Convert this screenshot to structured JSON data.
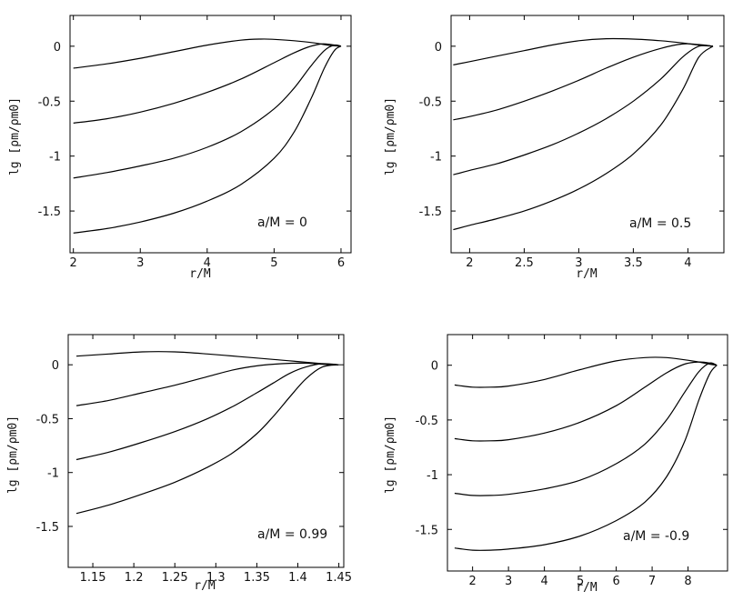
{
  "chart_data": [
    {
      "type": "line",
      "annotation": "a/M = 0",
      "xlabel": "r/M",
      "ylabel": "lg [ρm/ρm0]",
      "xlim": [
        1.95,
        6.15
      ],
      "ylim": [
        -1.88,
        0.28
      ],
      "xticks": [
        2,
        3,
        4,
        5,
        6
      ],
      "xtick_labels": [
        "2",
        "3",
        "4",
        "5",
        "6"
      ],
      "yticks": [
        0,
        -0.5,
        -1,
        -1.5
      ],
      "ytick_labels": [
        "0",
        "-0.5",
        "-1",
        "-1.5"
      ],
      "series": [
        {
          "x": [
            2,
            2.5,
            3,
            3.5,
            4,
            4.5,
            4.8,
            5.0,
            5.3,
            5.6,
            5.8,
            6.0
          ],
          "y": [
            -0.2,
            -0.16,
            -0.11,
            -0.05,
            0.01,
            0.055,
            0.065,
            0.062,
            0.05,
            0.03,
            0.01,
            0.0
          ]
        },
        {
          "x": [
            2,
            2.5,
            3,
            3.5,
            4,
            4.5,
            5.0,
            5.3,
            5.5,
            5.7,
            5.85,
            6.0
          ],
          "y": [
            -0.7,
            -0.66,
            -0.6,
            -0.52,
            -0.42,
            -0.3,
            -0.15,
            -0.06,
            -0.01,
            0.02,
            0.015,
            0.0
          ]
        },
        {
          "x": [
            2,
            2.5,
            3,
            3.5,
            4,
            4.5,
            5.0,
            5.3,
            5.55,
            5.75,
            5.9,
            6.0
          ],
          "y": [
            -1.2,
            -1.15,
            -1.09,
            -1.02,
            -0.92,
            -0.78,
            -0.57,
            -0.38,
            -0.18,
            -0.04,
            0.01,
            0.0
          ]
        },
        {
          "x": [
            2,
            2.5,
            3,
            3.5,
            4,
            4.5,
            5.0,
            5.3,
            5.55,
            5.75,
            5.9,
            6.0
          ],
          "y": [
            -1.7,
            -1.66,
            -1.6,
            -1.52,
            -1.41,
            -1.26,
            -1.02,
            -0.78,
            -0.48,
            -0.2,
            -0.04,
            0.0
          ]
        }
      ]
    },
    {
      "type": "line",
      "annotation": "a/M = 0.5",
      "xlabel": "r/M",
      "ylabel": "lg [ρm/ρm0]",
      "xlim": [
        1.83,
        4.33
      ],
      "ylim": [
        -1.88,
        0.28
      ],
      "xticks": [
        2,
        2.5,
        3,
        3.5,
        4
      ],
      "xtick_labels": [
        "2",
        "2.5",
        "3",
        "3.5",
        "4"
      ],
      "yticks": [
        0,
        -0.5,
        -1,
        -1.5
      ],
      "ytick_labels": [
        "0",
        "-0.5",
        "-1",
        "-1.5"
      ],
      "series": [
        {
          "x": [
            1.85,
            2.0,
            2.25,
            2.5,
            2.75,
            3.0,
            3.25,
            3.5,
            3.75,
            3.95,
            4.1,
            4.23
          ],
          "y": [
            -0.17,
            -0.14,
            -0.09,
            -0.04,
            0.01,
            0.05,
            0.068,
            0.065,
            0.05,
            0.03,
            0.01,
            0.0
          ]
        },
        {
          "x": [
            1.85,
            2.0,
            2.25,
            2.5,
            2.75,
            3.0,
            3.25,
            3.5,
            3.75,
            3.95,
            4.1,
            4.23
          ],
          "y": [
            -0.67,
            -0.64,
            -0.58,
            -0.5,
            -0.41,
            -0.31,
            -0.2,
            -0.1,
            -0.02,
            0.02,
            0.015,
            0.0
          ]
        },
        {
          "x": [
            1.85,
            2.0,
            2.25,
            2.5,
            2.75,
            3.0,
            3.25,
            3.5,
            3.75,
            3.95,
            4.1,
            4.23
          ],
          "y": [
            -1.17,
            -1.13,
            -1.07,
            -0.99,
            -0.9,
            -0.79,
            -0.66,
            -0.5,
            -0.3,
            -0.1,
            0.0,
            0.0
          ]
        },
        {
          "x": [
            1.85,
            2.0,
            2.25,
            2.5,
            2.75,
            3.0,
            3.25,
            3.5,
            3.75,
            3.95,
            4.1,
            4.23
          ],
          "y": [
            -1.67,
            -1.63,
            -1.57,
            -1.5,
            -1.41,
            -1.3,
            -1.16,
            -0.98,
            -0.72,
            -0.4,
            -0.1,
            0.0
          ]
        }
      ]
    },
    {
      "type": "line",
      "annotation": "a/M = 0.99",
      "xlabel": "r/M",
      "ylabel": "lg [ρm/ρm0]",
      "xlim": [
        1.12,
        1.456
      ],
      "ylim": [
        -1.88,
        0.28
      ],
      "xticks": [
        1.15,
        1.2,
        1.25,
        1.3,
        1.35,
        1.4,
        1.45
      ],
      "xtick_labels": [
        "1.15",
        "1.2",
        "1.25",
        "1.3",
        "1.35",
        "1.4",
        "1.45"
      ],
      "yticks": [
        0,
        -0.5,
        -1,
        -1.5
      ],
      "ytick_labels": [
        "0",
        "-0.5",
        "-1",
        "-1.5"
      ],
      "series": [
        {
          "x": [
            1.13,
            1.17,
            1.21,
            1.25,
            1.29,
            1.33,
            1.37,
            1.4,
            1.43,
            1.45
          ],
          "y": [
            0.08,
            0.1,
            0.12,
            0.12,
            0.1,
            0.075,
            0.05,
            0.03,
            0.01,
            0.0
          ]
        },
        {
          "x": [
            1.13,
            1.17,
            1.21,
            1.25,
            1.29,
            1.32,
            1.35,
            1.38,
            1.41,
            1.43,
            1.45
          ],
          "y": [
            -0.38,
            -0.33,
            -0.26,
            -0.19,
            -0.11,
            -0.05,
            -0.01,
            0.01,
            0.015,
            0.005,
            0.0
          ]
        },
        {
          "x": [
            1.13,
            1.17,
            1.21,
            1.25,
            1.29,
            1.32,
            1.35,
            1.37,
            1.39,
            1.41,
            1.43,
            1.45
          ],
          "y": [
            -0.88,
            -0.81,
            -0.72,
            -0.62,
            -0.5,
            -0.39,
            -0.26,
            -0.17,
            -0.08,
            -0.02,
            0.01,
            0.0
          ]
        },
        {
          "x": [
            1.13,
            1.17,
            1.21,
            1.25,
            1.29,
            1.32,
            1.35,
            1.37,
            1.39,
            1.41,
            1.43,
            1.45
          ],
          "y": [
            -1.38,
            -1.3,
            -1.2,
            -1.09,
            -0.95,
            -0.82,
            -0.64,
            -0.48,
            -0.3,
            -0.13,
            -0.02,
            0.0
          ]
        }
      ]
    },
    {
      "type": "line",
      "annotation": "a/M = -0.9",
      "xlabel": "r/M",
      "ylabel": "lg [ρm/ρm0]",
      "xlim": [
        1.3,
        9.1
      ],
      "ylim": [
        -1.88,
        0.28
      ],
      "xticks": [
        2,
        3,
        4,
        5,
        6,
        7,
        8
      ],
      "xtick_labels": [
        "2",
        "3",
        "4",
        "5",
        "6",
        "7",
        "8"
      ],
      "yticks": [
        0,
        -0.5,
        -1,
        -1.5
      ],
      "ytick_labels": [
        "0",
        "-0.5",
        "-1",
        "-1.5"
      ],
      "series": [
        {
          "x": [
            1.5,
            2.0,
            2.5,
            3.0,
            4.0,
            5.0,
            6.0,
            6.8,
            7.4,
            7.9,
            8.3,
            8.6,
            8.8
          ],
          "y": [
            -0.18,
            -0.2,
            -0.2,
            -0.19,
            -0.13,
            -0.04,
            0.04,
            0.07,
            0.07,
            0.05,
            0.03,
            0.01,
            0.0
          ]
        },
        {
          "x": [
            1.5,
            2.0,
            2.5,
            3.0,
            4.0,
            5.0,
            6.0,
            6.8,
            7.4,
            7.9,
            8.3,
            8.6,
            8.8
          ],
          "y": [
            -0.67,
            -0.69,
            -0.69,
            -0.68,
            -0.62,
            -0.52,
            -0.37,
            -0.2,
            -0.07,
            0.01,
            0.03,
            0.02,
            0.0
          ]
        },
        {
          "x": [
            1.5,
            2.0,
            2.5,
            3.0,
            4.0,
            5.0,
            6.0,
            6.8,
            7.4,
            7.9,
            8.3,
            8.6,
            8.8
          ],
          "y": [
            -1.17,
            -1.19,
            -1.19,
            -1.18,
            -1.13,
            -1.05,
            -0.9,
            -0.72,
            -0.5,
            -0.25,
            -0.06,
            0.02,
            0.0
          ]
        },
        {
          "x": [
            1.5,
            2.0,
            2.5,
            3.0,
            4.0,
            5.0,
            6.0,
            6.8,
            7.4,
            7.9,
            8.3,
            8.6,
            8.8
          ],
          "y": [
            -1.67,
            -1.69,
            -1.69,
            -1.68,
            -1.64,
            -1.56,
            -1.42,
            -1.25,
            -1.02,
            -0.7,
            -0.32,
            -0.08,
            0.0
          ]
        }
      ]
    }
  ]
}
